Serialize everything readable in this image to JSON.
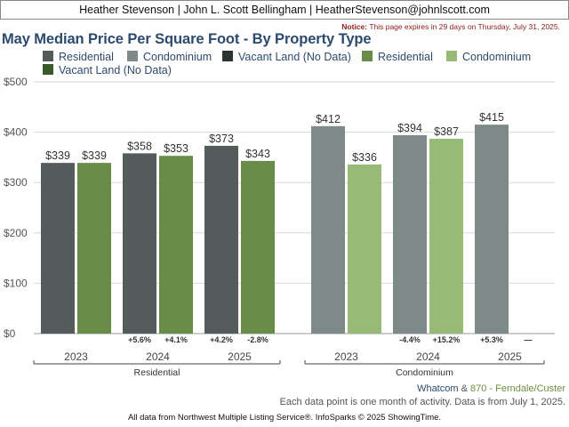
{
  "header": {
    "agents": "Heather Stevenson | John L. Scott Bellingham | HeatherStevenson@johnlscott.com",
    "notice_label": "Notice:",
    "notice_text": "This page expires in 29 days on Thursday, July 31, 2025."
  },
  "footer": {
    "region": "Whatcom",
    "amp": "&",
    "area": "870 - Ferndale/Custer",
    "data_note": "Each data point is one month of activity. Data is from July 1, 2025.",
    "source": "All data from Northwest Multiple Listing Service®. InfoSparks © 2025 ShowingTime."
  },
  "colors": {
    "residential": "#535c5b",
    "condominium": "#7d8a88",
    "vacant_land": "#2b3432",
    "residential_alt": "#6a8c49",
    "condominium_alt": "#97ba77",
    "vacant_land_alt": "#3a5a2a"
  },
  "chart_data": {
    "type": "bar",
    "title": "May Median Price Per Square Foot - By Property Type",
    "ylim": [
      0,
      500
    ],
    "yticks": [
      0,
      100,
      200,
      300,
      400,
      500
    ],
    "ytick_labels": [
      "$0",
      "$100",
      "$200",
      "$300",
      "$400",
      "$500"
    ],
    "grid": true,
    "legend": [
      {
        "label": "Residential",
        "color": "#535c5b"
      },
      {
        "label": "Condominium",
        "color": "#7d8a88"
      },
      {
        "label": "Vacant Land (No Data)",
        "color": "#2b3432"
      },
      {
        "label": "Residential",
        "color": "#6a8c49"
      },
      {
        "label": "Condominium",
        "color": "#97ba77"
      },
      {
        "label": "Vacant Land (No Data)",
        "color": "#3a5a2a"
      }
    ],
    "groups": [
      {
        "name": "Residential",
        "years": [
          {
            "year": "2023",
            "bars": [
              {
                "value": 339,
                "label": "$339",
                "color": "#535c5b"
              },
              {
                "value": 339,
                "label": "$339",
                "color": "#6a8c49"
              }
            ],
            "changes": [
              "",
              ""
            ]
          },
          {
            "year": "2024",
            "bars": [
              {
                "value": 358,
                "label": "$358",
                "color": "#535c5b"
              },
              {
                "value": 353,
                "label": "$353",
                "color": "#6a8c49"
              }
            ],
            "changes": [
              "+5.6%",
              "+4.1%"
            ]
          },
          {
            "year": "2025",
            "bars": [
              {
                "value": 373,
                "label": "$373",
                "color": "#535c5b"
              },
              {
                "value": 343,
                "label": "$343",
                "color": "#6a8c49"
              }
            ],
            "changes": [
              "+4.2%",
              "-2.8%"
            ]
          }
        ]
      },
      {
        "name": "Condominium",
        "years": [
          {
            "year": "2023",
            "bars": [
              {
                "value": 412,
                "label": "$412",
                "color": "#7d8a88"
              },
              {
                "value": 336,
                "label": "$336",
                "color": "#97ba77"
              }
            ],
            "changes": [
              "",
              ""
            ]
          },
          {
            "year": "2024",
            "bars": [
              {
                "value": 394,
                "label": "$394",
                "color": "#7d8a88"
              },
              {
                "value": 387,
                "label": "$387",
                "color": "#97ba77"
              }
            ],
            "changes": [
              "-4.4%",
              "+15.2%"
            ]
          },
          {
            "year": "2025",
            "bars": [
              {
                "value": 415,
                "label": "$415",
                "color": "#7d8a88"
              },
              {
                "value": null,
                "label": "",
                "color": "#97ba77"
              }
            ],
            "changes": [
              "+5.3%",
              "—"
            ]
          }
        ]
      }
    ]
  }
}
